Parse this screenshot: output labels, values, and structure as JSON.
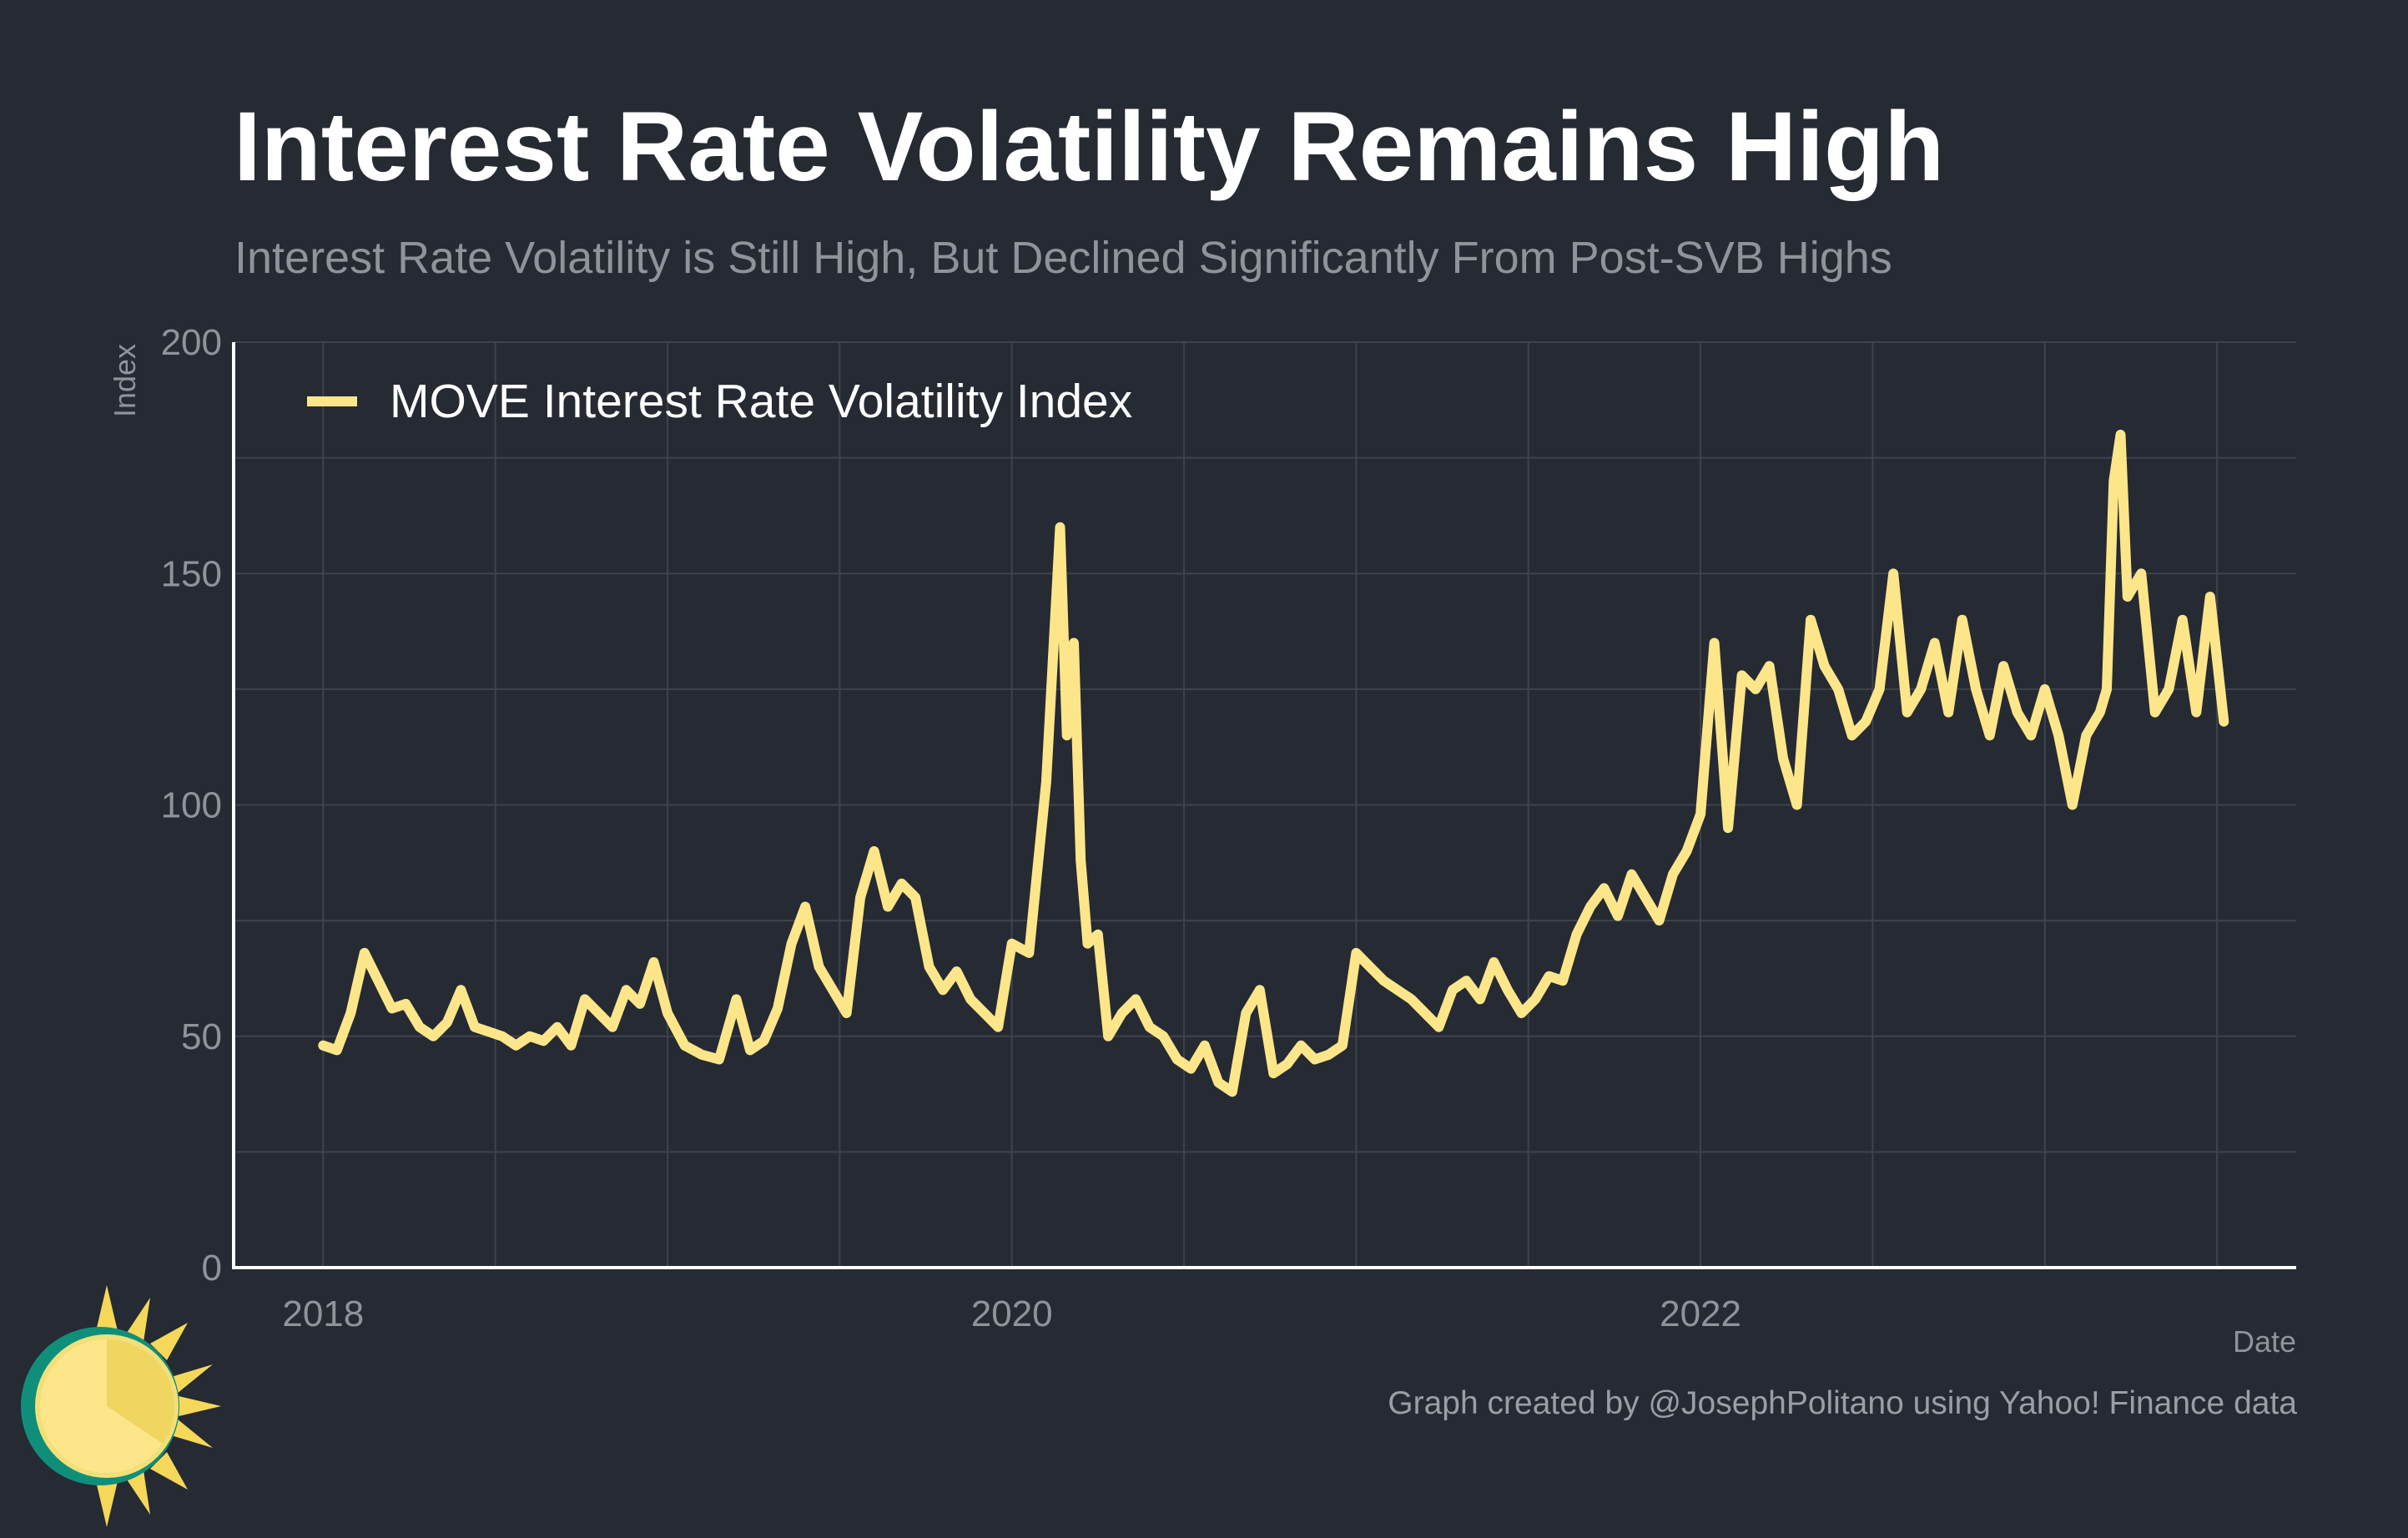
{
  "title": "Interest Rate Volatility Remains High",
  "subtitle": "Interest Rate Volatility is Still High, But Declined Significantly From Post-SVB Highs",
  "caption": "Graph created by @JosephPolitano using Yahoo! Finance data",
  "colors": {
    "background": "#252a33",
    "series": "#fde68a",
    "grid": "#3e434c",
    "axis": "#ffffff",
    "tick_text": "#8f939a"
  },
  "logo": {
    "icon": "sun-icon"
  },
  "chart_data": {
    "type": "line",
    "title": "Interest Rate Volatility Remains High",
    "xlabel": "Date",
    "ylabel": "Index",
    "ylim": [
      0,
      200
    ],
    "y_ticks": [
      0,
      50,
      100,
      150,
      200
    ],
    "xlim": [
      2017.74,
      2023.73
    ],
    "x_ticks": [
      2018,
      2020,
      2022
    ],
    "x_tick_labels": [
      "2018",
      "2020",
      "2022"
    ],
    "grid": true,
    "legend_position": "top-left",
    "series": [
      {
        "name": "MOVE Interest Rate Volatility Index",
        "color": "#fde68a",
        "x": [
          2018.0,
          2018.04,
          2018.08,
          2018.12,
          2018.16,
          2018.2,
          2018.24,
          2018.28,
          2018.32,
          2018.36,
          2018.4,
          2018.44,
          2018.48,
          2018.52,
          2018.56,
          2018.6,
          2018.64,
          2018.68,
          2018.72,
          2018.76,
          2018.8,
          2018.84,
          2018.88,
          2018.92,
          2018.96,
          2019.0,
          2019.05,
          2019.1,
          2019.15,
          2019.2,
          2019.24,
          2019.28,
          2019.32,
          2019.36,
          2019.4,
          2019.44,
          2019.48,
          2019.52,
          2019.56,
          2019.6,
          2019.64,
          2019.68,
          2019.72,
          2019.76,
          2019.8,
          2019.84,
          2019.88,
          2019.92,
          2019.96,
          2020.0,
          2020.05,
          2020.1,
          2020.14,
          2020.16,
          2020.18,
          2020.2,
          2020.22,
          2020.25,
          2020.28,
          2020.32,
          2020.36,
          2020.4,
          2020.44,
          2020.48,
          2020.52,
          2020.56,
          2020.6,
          2020.64,
          2020.68,
          2020.72,
          2020.76,
          2020.8,
          2020.84,
          2020.88,
          2020.92,
          2020.96,
          2021.0,
          2021.04,
          2021.08,
          2021.12,
          2021.16,
          2021.2,
          2021.24,
          2021.28,
          2021.32,
          2021.36,
          2021.4,
          2021.44,
          2021.48,
          2021.52,
          2021.56,
          2021.6,
          2021.64,
          2021.68,
          2021.72,
          2021.76,
          2021.8,
          2021.84,
          2021.88,
          2021.92,
          2021.96,
          2022.0,
          2022.04,
          2022.08,
          2022.12,
          2022.16,
          2022.2,
          2022.24,
          2022.28,
          2022.32,
          2022.36,
          2022.4,
          2022.44,
          2022.48,
          2022.52,
          2022.56,
          2022.6,
          2022.64,
          2022.68,
          2022.72,
          2022.76,
          2022.8,
          2022.84,
          2022.88,
          2022.92,
          2022.96,
          2023.0,
          2023.04,
          2023.08,
          2023.12,
          2023.16,
          2023.18,
          2023.2,
          2023.22,
          2023.24,
          2023.28,
          2023.32,
          2023.36,
          2023.4,
          2023.44,
          2023.48,
          2023.52
        ],
        "values": [
          48,
          47,
          55,
          68,
          62,
          56,
          57,
          52,
          50,
          53,
          60,
          52,
          51,
          50,
          48,
          50,
          49,
          52,
          48,
          58,
          55,
          52,
          60,
          57,
          66,
          55,
          48,
          46,
          45,
          58,
          47,
          49,
          56,
          70,
          78,
          65,
          60,
          55,
          80,
          90,
          78,
          83,
          80,
          65,
          60,
          64,
          58,
          55,
          52,
          70,
          68,
          105,
          160,
          115,
          135,
          88,
          70,
          72,
          50,
          55,
          58,
          52,
          50,
          45,
          43,
          48,
          40,
          38,
          55,
          60,
          42,
          44,
          48,
          45,
          46,
          48,
          68,
          65,
          62,
          60,
          58,
          55,
          52,
          60,
          62,
          58,
          66,
          60,
          55,
          58,
          63,
          62,
          72,
          78,
          82,
          76,
          85,
          80,
          75,
          85,
          90,
          98,
          135,
          95,
          128,
          125,
          130,
          110,
          100,
          140,
          130,
          125,
          115,
          118,
          125,
          150,
          120,
          125,
          135,
          120,
          140,
          125,
          115,
          130,
          120,
          115,
          125,
          115,
          100,
          115,
          120,
          125,
          170,
          180,
          145,
          150,
          120,
          125,
          140,
          120,
          145,
          118
        ]
      }
    ]
  }
}
